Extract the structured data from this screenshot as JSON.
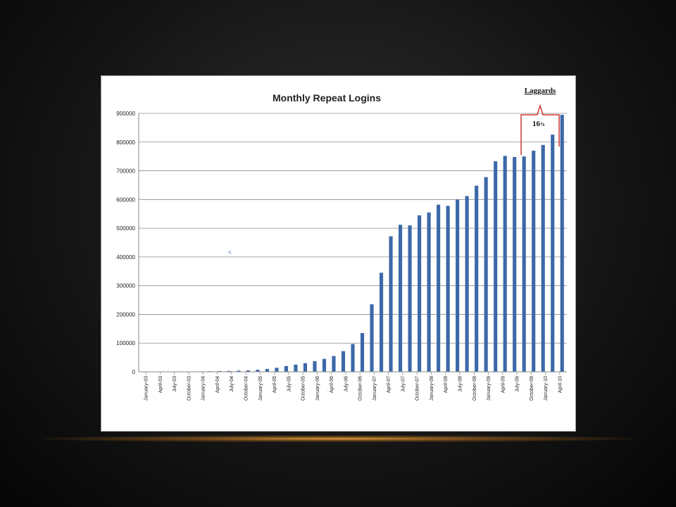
{
  "chart_data": {
    "type": "bar",
    "title": "Monthly Repeat Logins",
    "xlabel": "",
    "ylabel": "",
    "ylim": [
      0,
      900000
    ],
    "yticks": [
      0,
      100000,
      200000,
      300000,
      400000,
      500000,
      600000,
      700000,
      800000,
      900000
    ],
    "grid": true,
    "legend": "none",
    "bar_color": "#3c68a8",
    "categories": [
      "January-03",
      "April-03",
      "July-03",
      "October-03",
      "January-04",
      "April-04",
      "July-04",
      "October-04",
      "January-05",
      "April-05",
      "July-05",
      "October-05",
      "January-06",
      "April-06",
      "July-06",
      "October-06",
      "January-07",
      "April-07",
      "July-07",
      "October-07",
      "January-08",
      "April-08",
      "July-08",
      "October-08",
      "January-09",
      "April-09",
      "July-09",
      "October-09",
      "January-10",
      "April-10"
    ],
    "x": [
      "Jan-03",
      "Mar-03",
      "May-03",
      "Jul-03",
      "Sep-03",
      "Nov-03",
      "Jan-04",
      "Mar-04",
      "May-04",
      "Jul-04",
      "Sep-04",
      "Nov-04",
      "Jan-05",
      "Mar-05",
      "May-05",
      "Jul-05",
      "Sep-05",
      "Nov-05",
      "Jan-06",
      "Mar-06",
      "May-06",
      "Jul-06",
      "Sep-06",
      "Nov-06",
      "Jan-07",
      "Mar-07",
      "May-07",
      "Jul-07",
      "Sep-07",
      "Nov-07",
      "Jan-08",
      "Mar-08",
      "May-08",
      "Jul-08",
      "Sep-08",
      "Nov-08",
      "Jan-09",
      "Mar-09",
      "May-09",
      "Jul-09",
      "Sep-09",
      "Nov-09",
      "Jan-10",
      "Mar-10",
      "May-10"
    ],
    "values": [
      1000,
      1000,
      1000,
      1000,
      1000,
      1000,
      1500,
      2000,
      2500,
      3000,
      4000,
      5000,
      7000,
      10000,
      14000,
      20000,
      25000,
      30000,
      37000,
      45000,
      55000,
      72000,
      97000,
      135000,
      235000,
      345000,
      472000,
      512000,
      510000,
      545000,
      555000,
      582000,
      578000,
      600000,
      612000,
      648000,
      678000,
      733000,
      752000,
      748000,
      750000,
      770000,
      790000,
      826000,
      895000
    ]
  },
  "annotations": {
    "laggards_label": "Laggards",
    "laggards_percent": "16",
    "laggards_percent_sign": "%",
    "bracket_color": "#d03a3a"
  },
  "stray_mark": "<"
}
